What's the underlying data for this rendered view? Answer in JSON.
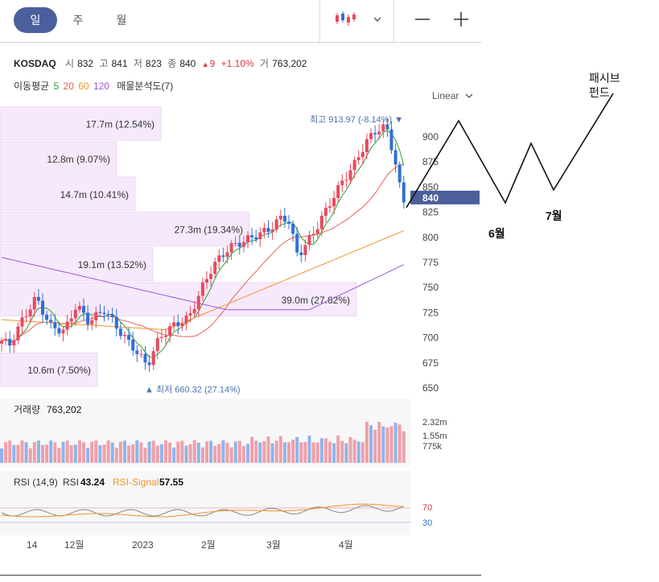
{
  "tabs": [
    {
      "label": "일",
      "active": true
    },
    {
      "label": "주",
      "active": false
    },
    {
      "label": "월",
      "active": false
    }
  ],
  "chart_type_icon": "candlestick-icon",
  "quote": {
    "name": "KOSDAQ",
    "open_label": "시",
    "open": "832",
    "high_label": "고",
    "high": "841",
    "low_label": "저",
    "low": "823",
    "close_label": "종",
    "close": "840",
    "change_arrow": "▲",
    "change": "9",
    "change_pct": "+1.10%",
    "volume_label": "거",
    "volume": "763,202"
  },
  "ma_legend": {
    "label": "이동평균",
    "periods": [
      "5",
      "20",
      "60",
      "120"
    ],
    "colors": [
      "#2ca02c",
      "#e8605a",
      "#f0932b",
      "#9b59d6"
    ],
    "extra": "매물분석도(7)"
  },
  "scale_select": "Linear",
  "colors": {
    "up": "#e84a5f",
    "down": "#2f6fd6",
    "accent": "#4a5f9b"
  },
  "chart_data": {
    "type": "candlestick",
    "ylim": [
      650,
      920
    ],
    "yticks": [
      "900",
      "875",
      "850",
      "825",
      "800",
      "775",
      "750",
      "725",
      "700",
      "675",
      "650"
    ],
    "xticks": [
      "14",
      "12월",
      "2023",
      "2월",
      "3월",
      "4월"
    ],
    "current_price_label": "840",
    "high_annotation": "최고 913.97 (-8.14%)",
    "low_annotation": "최저 660.32 (27.14%)",
    "volume_profile": [
      {
        "label": "17.7m (12.54%)",
        "price_from": 895,
        "price_to": 930
      },
      {
        "label": "12.8m (9.07%)",
        "price_from": 860,
        "price_to": 895
      },
      {
        "label": "14.7m (10.41%)",
        "price_from": 825,
        "price_to": 860
      },
      {
        "label": "27.3m (19.34%)",
        "price_from": 790,
        "price_to": 825
      },
      {
        "label": "19.1m (13.52%)",
        "price_from": 755,
        "price_to": 790
      },
      {
        "label": "39.0m (27.62%)",
        "price_from": 720,
        "price_to": 755
      },
      {
        "label": "10.6m (7.50%)",
        "price_from": 650,
        "price_to": 685
      }
    ],
    "volume_panel": {
      "label": "거래량",
      "value": "763,202",
      "yticks": [
        "2.32m",
        "1.55m",
        "775k"
      ]
    },
    "rsi_panel": {
      "label": "RSI (14,9)",
      "rsi_label": "RSI",
      "rsi_value": "43.24",
      "signal_label": "RSI-Signal",
      "signal_value": "57.55",
      "levels": [
        "70",
        "30"
      ]
    }
  },
  "annotations": {
    "june": "6월",
    "july": "7월",
    "passive": "패시브\n펀드"
  }
}
